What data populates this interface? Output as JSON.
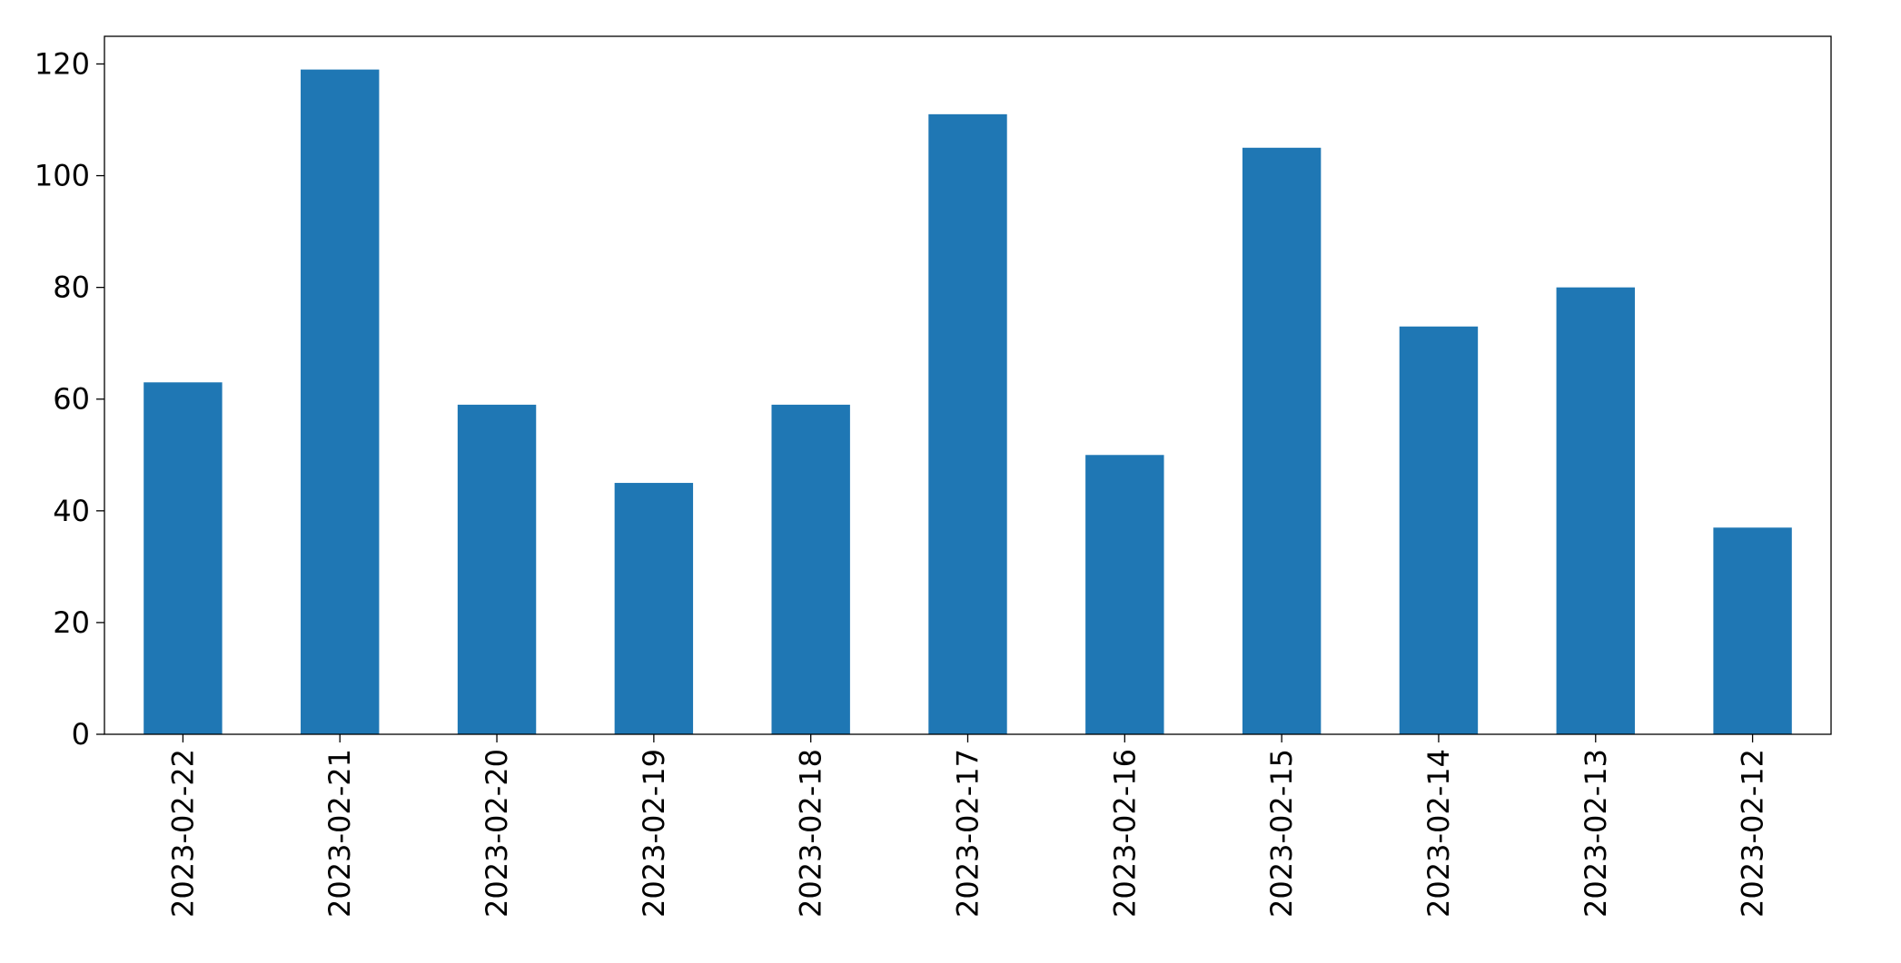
{
  "chart_data": {
    "type": "bar",
    "categories": [
      "2023-02-22",
      "2023-02-21",
      "2023-02-20",
      "2023-02-19",
      "2023-02-18",
      "2023-02-17",
      "2023-02-16",
      "2023-02-15",
      "2023-02-14",
      "2023-02-13",
      "2023-02-12"
    ],
    "values": [
      63,
      119,
      59,
      45,
      59,
      111,
      50,
      105,
      73,
      80,
      37
    ],
    "color": "#1f77b4",
    "ylim": [
      0,
      124.95
    ],
    "yticks": [
      0,
      20,
      40,
      60,
      80,
      100,
      120
    ],
    "grid": false
  }
}
